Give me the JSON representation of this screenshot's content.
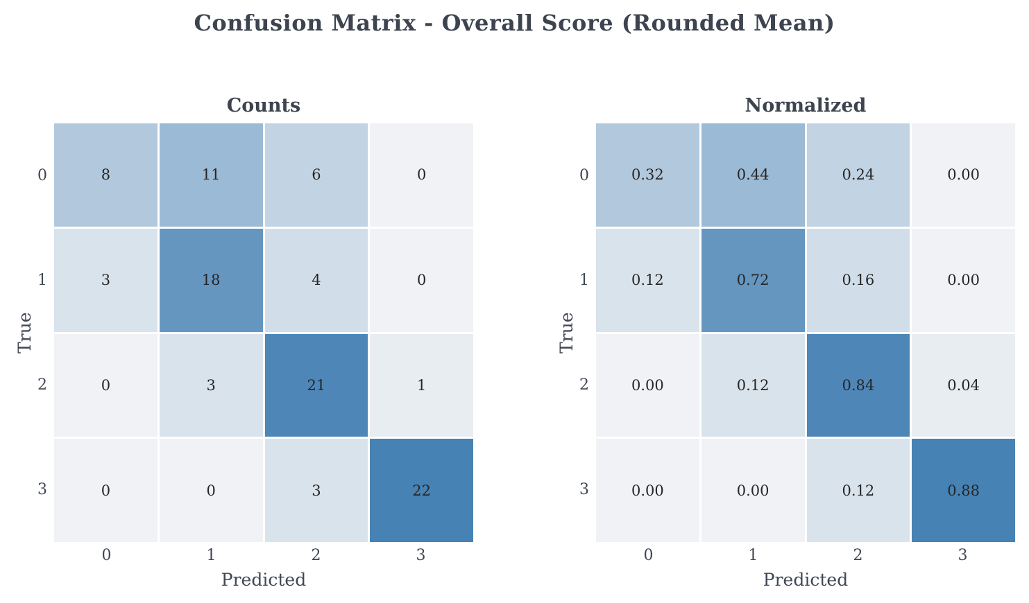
{
  "figure": {
    "title": "Confusion Matrix - Overall Score (Rounded Mean)"
  },
  "colors": {
    "background": "#ffffff",
    "colormap_low": "#f0f2f5",
    "colormap_high": "#4682b4",
    "annotation_text": "#262626",
    "axis_text": "#3f4753",
    "title_text": "#3d4450"
  },
  "chart_data": [
    {
      "type": "heatmap",
      "title": "Counts",
      "xlabel": "Predicted",
      "ylabel": "True",
      "x_ticks": [
        "0",
        "1",
        "2",
        "3"
      ],
      "y_ticks": [
        "0",
        "1",
        "2",
        "3"
      ],
      "rows": [
        [
          8,
          11,
          6,
          0
        ],
        [
          3,
          18,
          4,
          0
        ],
        [
          0,
          3,
          21,
          1
        ],
        [
          0,
          0,
          3,
          22
        ]
      ],
      "cell_labels": [
        [
          "8",
          "11",
          "6",
          "0"
        ],
        [
          "3",
          "18",
          "4",
          "0"
        ],
        [
          "0",
          "3",
          "21",
          "1"
        ],
        [
          "0",
          "0",
          "3",
          "22"
        ]
      ],
      "vmin": 0,
      "vmax": 22,
      "grid": false,
      "legend": "none"
    },
    {
      "type": "heatmap",
      "title": "Normalized",
      "xlabel": "Predicted",
      "ylabel": "True",
      "x_ticks": [
        "0",
        "1",
        "2",
        "3"
      ],
      "y_ticks": [
        "0",
        "1",
        "2",
        "3"
      ],
      "rows": [
        [
          0.32,
          0.44,
          0.24,
          0.0
        ],
        [
          0.12,
          0.72,
          0.16,
          0.0
        ],
        [
          0.0,
          0.12,
          0.84,
          0.04
        ],
        [
          0.0,
          0.0,
          0.12,
          0.88
        ]
      ],
      "cell_labels": [
        [
          "0.32",
          "0.44",
          "0.24",
          "0.00"
        ],
        [
          "0.12",
          "0.72",
          "0.16",
          "0.00"
        ],
        [
          "0.00",
          "0.12",
          "0.84",
          "0.04"
        ],
        [
          "0.00",
          "0.00",
          "0.12",
          "0.88"
        ]
      ],
      "vmin": 0,
      "vmax": 0.88,
      "grid": false,
      "legend": "none"
    }
  ]
}
